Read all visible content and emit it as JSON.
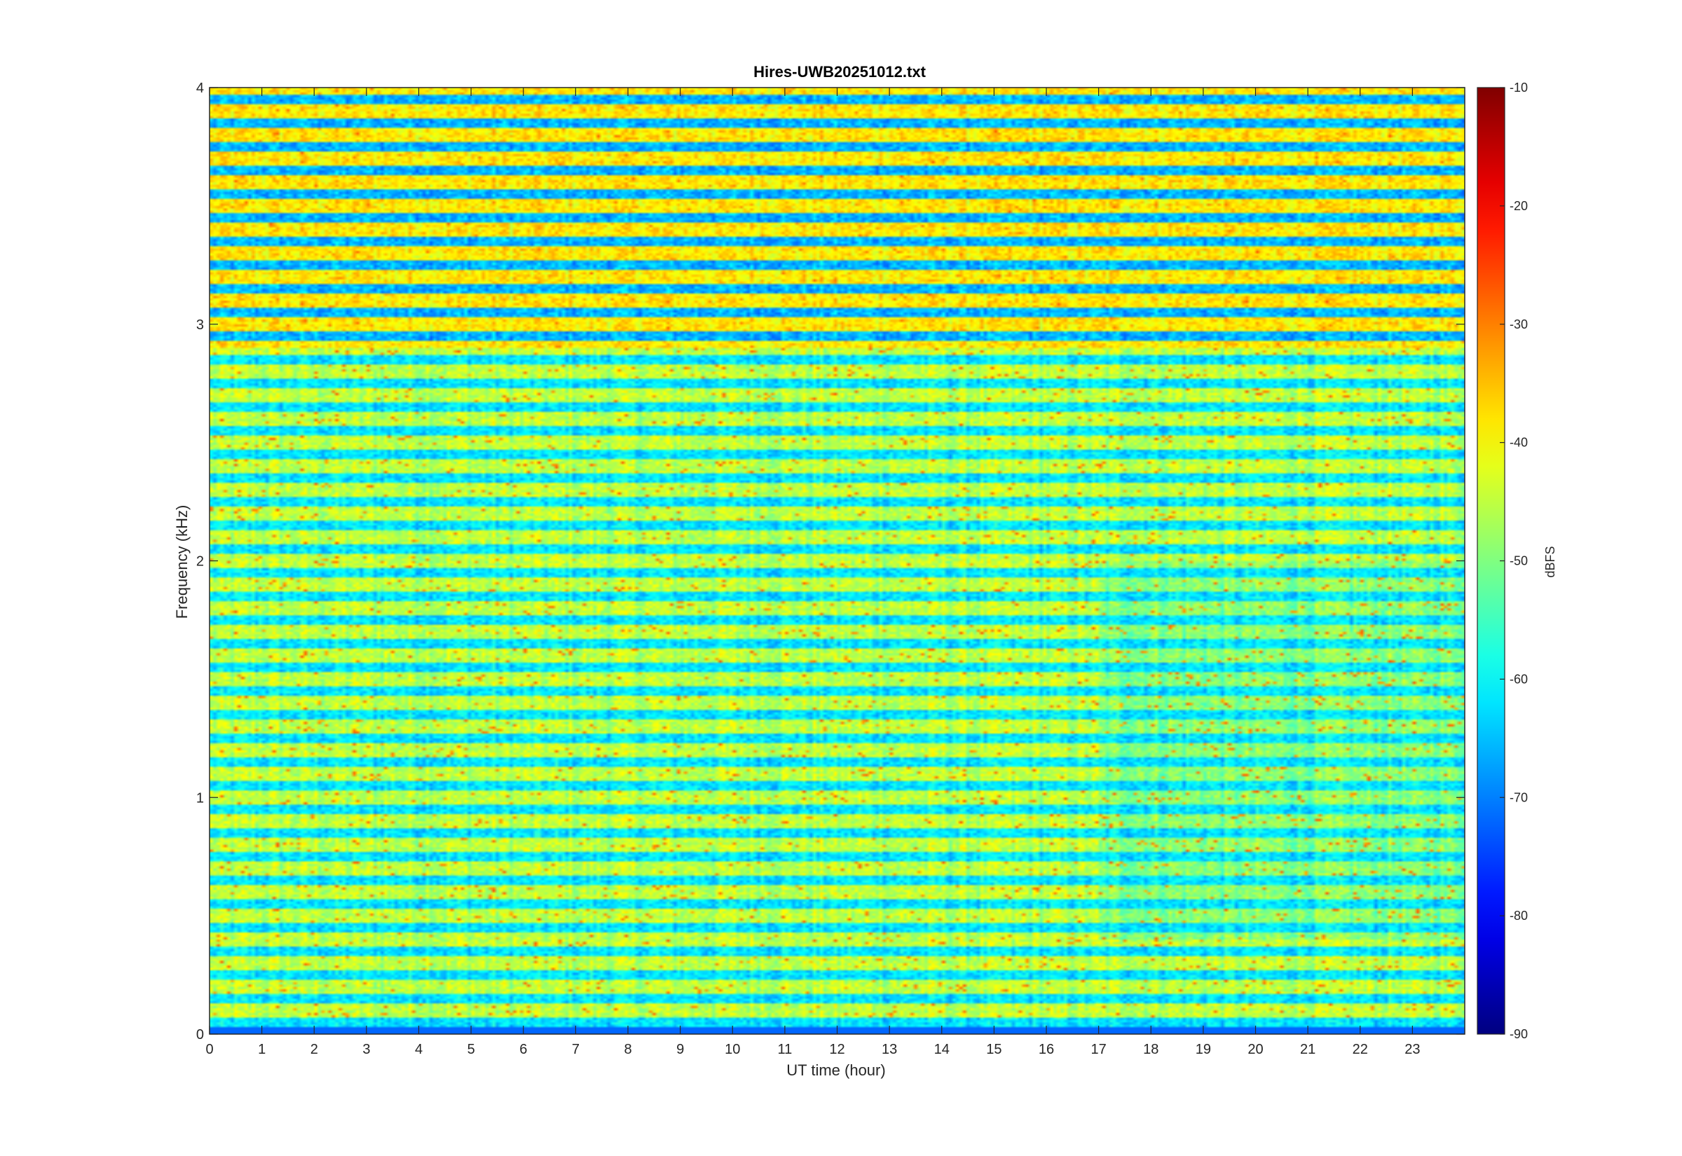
{
  "chart_data": {
    "type": "heatmap",
    "title": "Hires-UWB20251012.txt",
    "xlabel": "UT time (hour)",
    "ylabel": "Frequency (kHz)",
    "xlim": [
      0,
      24
    ],
    "ylim": [
      0,
      4
    ],
    "xticks": [
      "0",
      "1",
      "2",
      "3",
      "4",
      "5",
      "6",
      "7",
      "8",
      "9",
      "10",
      "11",
      "12",
      "13",
      "14",
      "15",
      "16",
      "17",
      "18",
      "19",
      "20",
      "21",
      "22",
      "23"
    ],
    "yticks": [
      "0",
      "1",
      "2",
      "3",
      "4"
    ],
    "colorbar": {
      "label": "dBFS",
      "range": [
        -90,
        -10
      ],
      "ticks": [
        "-10",
        "-20",
        "-30",
        "-40",
        "-50",
        "-60",
        "-70",
        "-80",
        "-90"
      ],
      "colormap": "jet"
    },
    "z_description_values": {
      "background_dBFS": -62,
      "upper_band_dBFS": -66,
      "harmonic_lines_dBFS": -45,
      "strongest_lines_dBFS": -33,
      "bottom_edge_dBFS": -72
    },
    "harmonic_spacing_kHz": 0.1
  },
  "colors": {
    "axis": "#262626",
    "background": "#ffffff"
  }
}
